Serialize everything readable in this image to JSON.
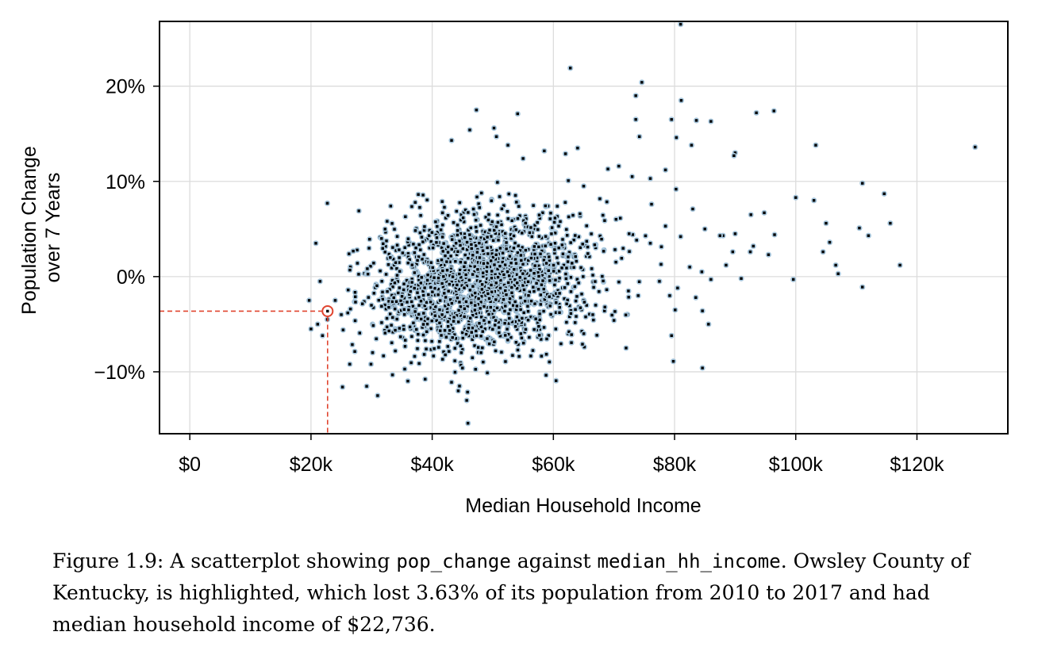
{
  "chart_data": {
    "type": "scatter",
    "xlabel": "Median Household Income",
    "ylabel_lines": [
      "Population Change",
      "over 7 Years"
    ],
    "xlim": [
      -5000,
      135000
    ],
    "ylim": [
      -16.5,
      26.8
    ],
    "x_ticks": [
      0,
      20000,
      40000,
      60000,
      80000,
      100000,
      120000
    ],
    "x_tick_labels": [
      "$0",
      "$20k",
      "$40k",
      "$60k",
      "$80k",
      "$100k",
      "$120k"
    ],
    "y_ticks": [
      -10,
      0,
      10,
      20
    ],
    "y_tick_labels": [
      "−10%",
      "0%",
      "10%",
      "20%"
    ],
    "grid": true,
    "point_color": "#000000",
    "point_halo_color": "#a9c8de",
    "highlight_color": "#e0442f",
    "highlight": {
      "x": 22736,
      "y": -3.63
    },
    "cluster": {
      "n": 1900,
      "x_mean": 48000,
      "x_sd": 9500,
      "y_mean": -0.6,
      "y_sd": 3.6,
      "slope_pct_per_10k": 0.65
    },
    "points": [
      [
        81000,
        26.5
      ],
      [
        62800,
        21.9
      ],
      [
        74600,
        20.4
      ],
      [
        73600,
        19.0
      ],
      [
        81100,
        18.5
      ],
      [
        47300,
        17.5
      ],
      [
        96400,
        17.4
      ],
      [
        93500,
        17.2
      ],
      [
        54100,
        17.1
      ],
      [
        73600,
        16.5
      ],
      [
        79500,
        16.5
      ],
      [
        83600,
        16.4
      ],
      [
        86000,
        16.3
      ],
      [
        46200,
        15.4
      ],
      [
        50200,
        15.6
      ],
      [
        74200,
        14.7
      ],
      [
        43200,
        14.3
      ],
      [
        80300,
        14.6
      ],
      [
        82800,
        13.8
      ],
      [
        103300,
        13.8
      ],
      [
        129600,
        13.6
      ],
      [
        90000,
        13.0
      ],
      [
        89800,
        12.7
      ],
      [
        70800,
        11.6
      ],
      [
        111000,
        9.8
      ],
      [
        114600,
        8.7
      ],
      [
        100000,
        8.3
      ],
      [
        103000,
        8.0
      ],
      [
        22700,
        7.7
      ],
      [
        27900,
        6.9
      ],
      [
        105000,
        5.6
      ],
      [
        110500,
        5.1
      ],
      [
        112000,
        4.3
      ],
      [
        115600,
        5.6
      ],
      [
        117200,
        1.2
      ],
      [
        111000,
        -1.1
      ],
      [
        99600,
        -0.3
      ],
      [
        96500,
        4.4
      ],
      [
        92500,
        2.6
      ],
      [
        88500,
        1.2
      ],
      [
        91000,
        -0.2
      ],
      [
        90000,
        4.5
      ],
      [
        92600,
        6.5
      ],
      [
        94800,
        6.7
      ],
      [
        95500,
        2.3
      ],
      [
        93000,
        3.2
      ],
      [
        104500,
        2.6
      ],
      [
        106600,
        1.2
      ],
      [
        107000,
        0.3
      ],
      [
        105600,
        3.6
      ],
      [
        88000,
        4.3
      ],
      [
        89600,
        2.6
      ],
      [
        20800,
        3.5
      ],
      [
        19700,
        -2.5
      ],
      [
        21500,
        -0.5
      ],
      [
        20000,
        -5.5
      ],
      [
        21100,
        -5.0
      ],
      [
        21900,
        -6.2
      ],
      [
        22700,
        -4.5
      ],
      [
        24000,
        -2.5
      ],
      [
        25000,
        -4.0
      ],
      [
        25300,
        -5.6
      ],
      [
        26400,
        -9.2
      ],
      [
        25200,
        -11.6
      ],
      [
        31000,
        -12.5
      ],
      [
        29900,
        -9.2
      ],
      [
        44300,
        -12.0
      ],
      [
        45700,
        -13.0
      ],
      [
        45900,
        -15.4
      ],
      [
        45000,
        -9.6
      ],
      [
        72000,
        -7.5
      ],
      [
        79800,
        -8.9
      ],
      [
        79500,
        -6.2
      ],
      [
        84600,
        -9.6
      ],
      [
        85600,
        -5.0
      ],
      [
        84600,
        -3.6
      ],
      [
        80100,
        -3.5
      ],
      [
        83500,
        -2.2
      ],
      [
        79200,
        -2.0
      ],
      [
        63000,
        -6.1
      ],
      [
        64800,
        -7.1
      ],
      [
        68500,
        -3.2
      ],
      [
        72500,
        4.5
      ],
      [
        65000,
        9.5
      ],
      [
        69000,
        11.3
      ],
      [
        73000,
        10.5
      ],
      [
        76000,
        10.3
      ],
      [
        78500,
        11.2
      ],
      [
        58500,
        13.2
      ],
      [
        62000,
        12.9
      ],
      [
        64000,
        13.5
      ],
      [
        55000,
        12.4
      ],
      [
        52500,
        13.8
      ],
      [
        50600,
        14.7
      ],
      [
        76200,
        7.6
      ],
      [
        83000,
        7.1
      ],
      [
        85000,
        5.0
      ],
      [
        87500,
        4.3
      ],
      [
        76000,
        3.5
      ],
      [
        78500,
        5.3
      ],
      [
        81000,
        4.2
      ],
      [
        82500,
        1.0
      ],
      [
        84500,
        0.5
      ],
      [
        86000,
        -0.3
      ],
      [
        77500,
        -0.5
      ],
      [
        80500,
        -1.2
      ],
      [
        74000,
        -2.0
      ],
      [
        70000,
        -4.6
      ],
      [
        66500,
        -4.0
      ]
    ]
  },
  "caption": {
    "prefix": "Figure 1.9: A scatterplot showing ",
    "code1": "pop_change",
    "middle": " against ",
    "code2": "median_hh_income",
    "suffix": ". Owsley County of Kentucky, is highlighted, which lost 3.63% of its population from 2010 to 2017 and had median household income of $22,736."
  }
}
